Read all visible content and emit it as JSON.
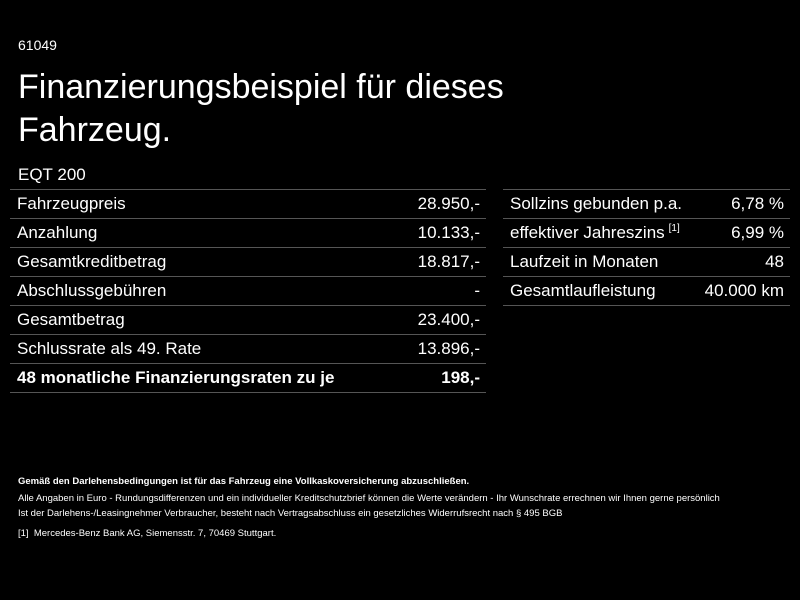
{
  "header": {
    "id": "61049",
    "title": "Finanzierungsbeispiel für dieses Fahrzeug.",
    "model": "EQT 200"
  },
  "left_table": {
    "rows": [
      {
        "label": "Fahrzeugpreis",
        "value": "28.950,-"
      },
      {
        "label": "Anzahlung",
        "value": "10.133,-"
      },
      {
        "label": "Gesamtkreditbetrag",
        "value": "18.817,-"
      },
      {
        "label": "Abschlussgebühren",
        "value": "-"
      },
      {
        "label": "Gesamtbetrag",
        "value": "23.400,-"
      },
      {
        "label": "Schlussrate als 49. Rate",
        "value": "13.896,-"
      },
      {
        "label": "48 monatliche Finanzierungsraten zu je",
        "value": "198,-"
      }
    ]
  },
  "right_table": {
    "rows": [
      {
        "label": "Sollzins gebunden p.a.",
        "value": "6,78 %"
      },
      {
        "label": "effektiver Jahreszins",
        "note": "[1]",
        "value": "6,99 %"
      },
      {
        "label": "Laufzeit in Monaten",
        "value": "48"
      },
      {
        "label": "Gesamtlaufleistung",
        "value": "40.000 km"
      }
    ]
  },
  "footer": {
    "bold": "Gemäß den Darlehensbedingungen ist für das Fahrzeug eine Vollkaskoversicherung abzuschließen.",
    "lines": [
      "Alle Angaben in Euro - Rundungsdifferenzen und ein individueller Kreditschutzbrief können die Werte verändern - Ihr Wunschrate errechnen wir Ihnen gerne persönlich",
      "Ist der Darlehens-/Leasingnehmer Verbraucher, besteht nach Vertragsabschluss ein gesetzliches Widerrufsrecht nach § 495 BGB"
    ],
    "footnote": {
      "marker": "[1]",
      "text": "Mercedes-Benz Bank AG, Siemensstr. 7, 70469 Stuttgart."
    }
  }
}
